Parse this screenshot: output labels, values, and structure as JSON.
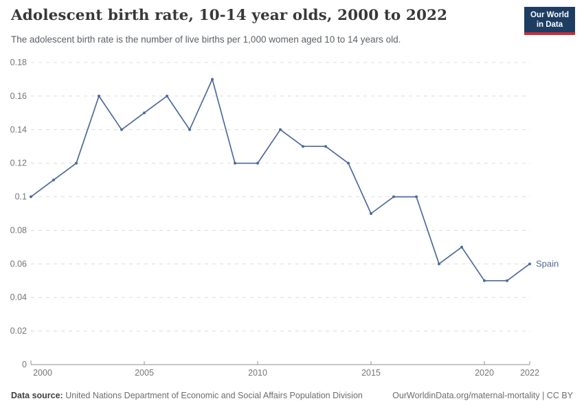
{
  "header": {
    "title": "Adolescent birth rate, 10-14 year olds, 2000 to 2022",
    "subtitle": "The adolescent birth rate is the number of live births per 1,000 women aged 10 to 14 years old.",
    "logo": {
      "line1": "Our World",
      "line2": "in Data"
    }
  },
  "colors": {
    "series_line": "#4c6a9c",
    "logo_background": "#1d3d63",
    "logo_underline": "#cb2d3a",
    "gridline": "#dcdcdc",
    "axis_line": "#8f8f8f",
    "axis_label": "#757575"
  },
  "chart_data": {
    "type": "line",
    "title": "Adolescent birth rate, 10-14 year olds, 2000 to 2022",
    "xlabel": "",
    "ylabel": "",
    "x": [
      2000,
      2001,
      2002,
      2003,
      2004,
      2005,
      2006,
      2007,
      2008,
      2009,
      2010,
      2011,
      2012,
      2013,
      2014,
      2015,
      2016,
      2017,
      2018,
      2019,
      2020,
      2021,
      2022
    ],
    "series": [
      {
        "name": "Spain",
        "color": "#4c6a9c",
        "values": [
          0.1,
          0.11,
          0.12,
          0.16,
          0.14,
          0.15,
          0.16,
          0.14,
          0.17,
          0.12,
          0.12,
          0.14,
          0.13,
          0.13,
          0.12,
          0.09,
          0.1,
          0.1,
          0.06,
          0.07,
          0.05,
          0.05,
          0.06
        ]
      }
    ],
    "xlim": [
      2000,
      2022
    ],
    "ylim": [
      0,
      0.18
    ],
    "x_ticks": [
      2000,
      2005,
      2010,
      2015,
      2020,
      2022
    ],
    "y_ticks": [
      0,
      0.02,
      0.04,
      0.06,
      0.08,
      0.1,
      0.12,
      0.14,
      0.16,
      0.18
    ],
    "grid": true,
    "legend_position": "end-of-line-label",
    "end_label": "Spain"
  },
  "footer": {
    "datasource_label": "Data source:",
    "datasource": "United Nations Department of Economic and Social Affairs Population Division",
    "origin": "OurWorldinData.org/maternal-mortality | CC BY"
  }
}
